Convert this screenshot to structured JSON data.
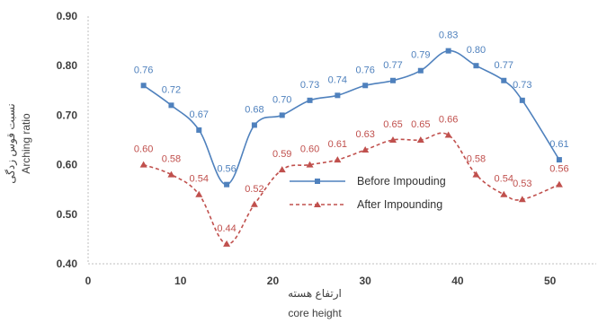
{
  "chart_data": {
    "type": "line",
    "title": "",
    "xlabel_fa": "ارتفاع هسته",
    "xlabel": "core height",
    "ylabel_fa": "نسبت قوس زدگی",
    "ylabel": "Arching ratio",
    "xlim": [
      0,
      55
    ],
    "ylim": [
      0.4,
      0.9
    ],
    "x_ticks": [
      "0",
      "10",
      "20",
      "30",
      "40",
      "50"
    ],
    "y_ticks": [
      "0.40",
      "0.50",
      "0.60",
      "0.70",
      "0.80",
      "0.90"
    ],
    "grid": false,
    "legend_position": "center-right",
    "series": [
      {
        "name": "Before Impouding",
        "color": "#4f81bd",
        "line_style": "solid",
        "marker": "square",
        "x": [
          6,
          9,
          12,
          15,
          18,
          21,
          24,
          27,
          30,
          33,
          36,
          39,
          42,
          45,
          47,
          51
        ],
        "values": [
          0.76,
          0.72,
          0.67,
          0.56,
          0.68,
          0.7,
          0.73,
          0.74,
          0.76,
          0.77,
          0.79,
          0.83,
          0.8,
          0.77,
          0.73,
          0.61
        ],
        "labels": [
          "0.76",
          "0.72",
          "0.67",
          "0.56",
          "0.68",
          "0.70",
          "0.73",
          "0.74",
          "0.76",
          "0.77",
          "0.79",
          "0.83",
          "0.80",
          "0.77",
          "0.73",
          "0.61"
        ]
      },
      {
        "name": "After Impounding",
        "color": "#c0504d",
        "line_style": "dashed",
        "marker": "triangle",
        "x": [
          6,
          9,
          12,
          15,
          18,
          21,
          24,
          27,
          30,
          33,
          36,
          39,
          42,
          45,
          47,
          51
        ],
        "values": [
          0.6,
          0.58,
          0.54,
          0.44,
          0.52,
          0.59,
          0.6,
          0.61,
          0.63,
          0.65,
          0.65,
          0.66,
          0.58,
          0.54,
          0.53,
          0.56
        ],
        "labels": [
          "0.60",
          "0.58",
          "0.54",
          "0.44",
          "0.52",
          "0.59",
          "0.60",
          "0.61",
          "0.63",
          "0.65",
          "0.65",
          "0.66",
          "0.58",
          "0.54",
          "0.53",
          "0.56"
        ]
      }
    ]
  }
}
